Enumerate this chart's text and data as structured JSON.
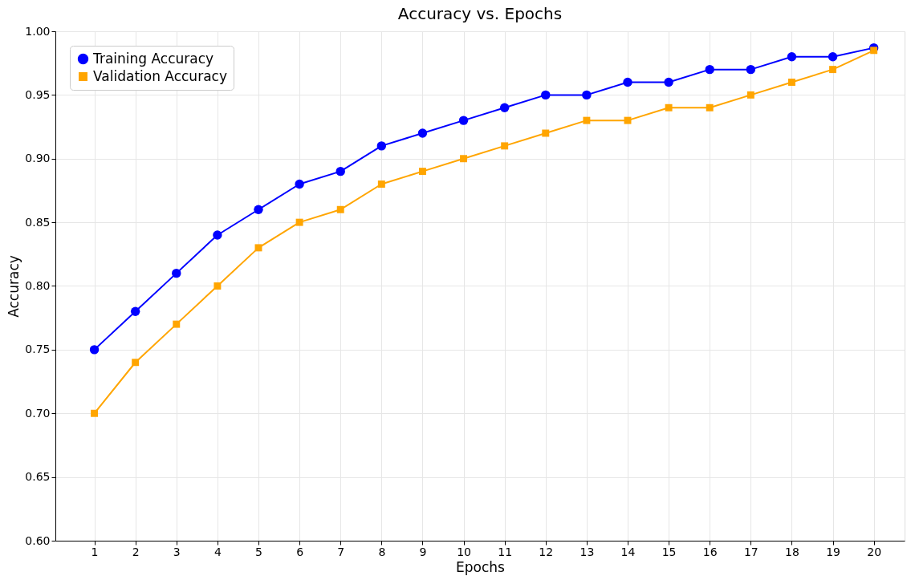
{
  "chart_data": {
    "type": "line",
    "title": "Accuracy vs. Epochs",
    "xlabel": "Epochs",
    "ylabel": "Accuracy",
    "x": [
      1,
      2,
      3,
      4,
      5,
      6,
      7,
      8,
      9,
      10,
      11,
      12,
      13,
      14,
      15,
      16,
      17,
      18,
      19,
      20
    ],
    "series": [
      {
        "name": "Training Accuracy",
        "color": "#0000ff",
        "marker": "circle",
        "values": [
          0.75,
          0.78,
          0.81,
          0.84,
          0.86,
          0.88,
          0.89,
          0.91,
          0.92,
          0.93,
          0.94,
          0.95,
          0.95,
          0.96,
          0.96,
          0.97,
          0.97,
          0.98,
          0.98,
          0.987
        ]
      },
      {
        "name": "Validation Accuracy",
        "color": "#ffa500",
        "marker": "square",
        "values": [
          0.7,
          0.74,
          0.77,
          0.8,
          0.83,
          0.85,
          0.86,
          0.88,
          0.89,
          0.9,
          0.91,
          0.92,
          0.93,
          0.93,
          0.94,
          0.94,
          0.95,
          0.96,
          0.97,
          0.985
        ]
      }
    ],
    "xlim": [
      0.05,
      20.75
    ],
    "xticks": [
      1,
      2,
      3,
      4,
      5,
      6,
      7,
      8,
      9,
      10,
      11,
      12,
      13,
      14,
      15,
      16,
      17,
      18,
      19,
      20
    ],
    "ylim": [
      0.6,
      1.0
    ],
    "yticks": [
      {
        "value": 0.6,
        "label": "0.60"
      },
      {
        "value": 0.65,
        "label": "0.65"
      },
      {
        "value": 0.7,
        "label": "0.70"
      },
      {
        "value": 0.75,
        "label": "0.75"
      },
      {
        "value": 0.8,
        "label": "0.80"
      },
      {
        "value": 0.85,
        "label": "0.85"
      },
      {
        "value": 0.9,
        "label": "0.90"
      },
      {
        "value": 0.95,
        "label": "0.95"
      },
      {
        "value": 1.0,
        "label": "1.00"
      }
    ],
    "grid": true,
    "legend": "top left",
    "line_style": "solid"
  }
}
